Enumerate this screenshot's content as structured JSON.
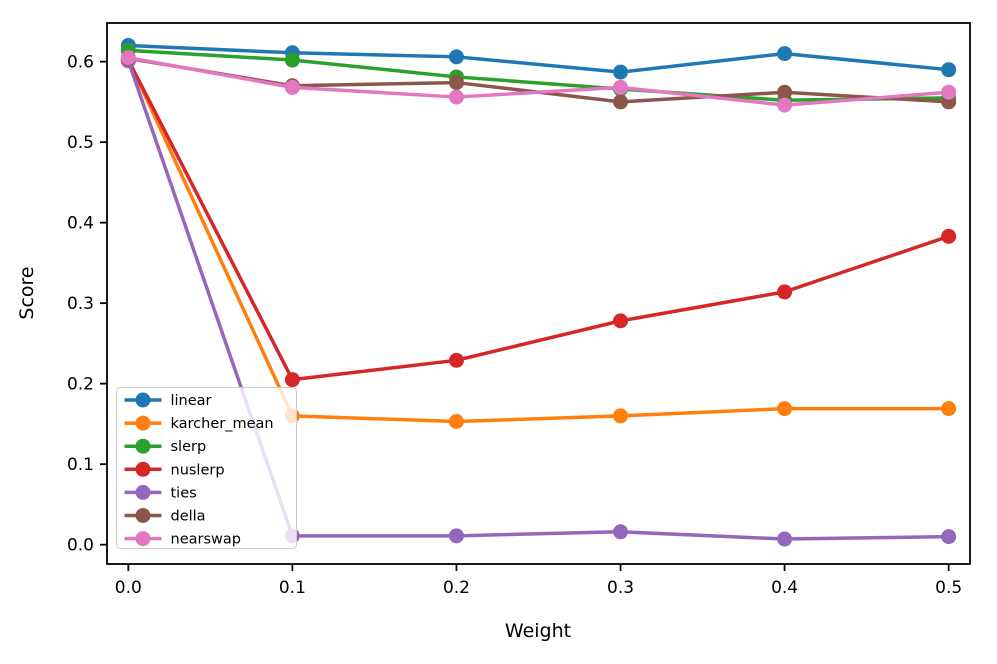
{
  "figure": {
    "background": "#ffffff",
    "spine_color": "#000000"
  },
  "chart_data": {
    "type": "line",
    "title": "",
    "xlabel": "Weight",
    "ylabel": "Score",
    "x": [
      0.0,
      0.1,
      0.2,
      0.3,
      0.4,
      0.5
    ],
    "xticks": [
      0.0,
      0.1,
      0.2,
      0.3,
      0.4,
      0.5
    ],
    "yticks": [
      0.0,
      0.1,
      0.2,
      0.3,
      0.4,
      0.5,
      0.6
    ],
    "xlim": [
      -0.013,
      0.513
    ],
    "ylim": [
      -0.024,
      0.648
    ],
    "grid": false,
    "legend_position": "lower left",
    "series": [
      {
        "name": "linear",
        "color": "#1f77b4",
        "values": [
          0.62,
          0.611,
          0.606,
          0.587,
          0.61,
          0.59
        ]
      },
      {
        "name": "karcher_mean",
        "color": "#ff7f0e",
        "values": [
          0.603,
          0.16,
          0.153,
          0.16,
          0.169,
          0.169
        ]
      },
      {
        "name": "slerp",
        "color": "#2ca02c",
        "values": [
          0.614,
          0.602,
          0.581,
          0.566,
          0.552,
          0.555
        ]
      },
      {
        "name": "nuslerp",
        "color": "#d62728",
        "values": [
          0.602,
          0.205,
          0.229,
          0.278,
          0.314,
          0.383
        ]
      },
      {
        "name": "ties",
        "color": "#9467bd",
        "values": [
          0.601,
          0.011,
          0.011,
          0.016,
          0.007,
          0.01
        ]
      },
      {
        "name": "della",
        "color": "#8c564b",
        "values": [
          0.604,
          0.57,
          0.574,
          0.55,
          0.562,
          0.55
        ]
      },
      {
        "name": "nearswap",
        "color": "#e377c2",
        "values": [
          0.605,
          0.568,
          0.556,
          0.568,
          0.546,
          0.562
        ]
      }
    ]
  }
}
